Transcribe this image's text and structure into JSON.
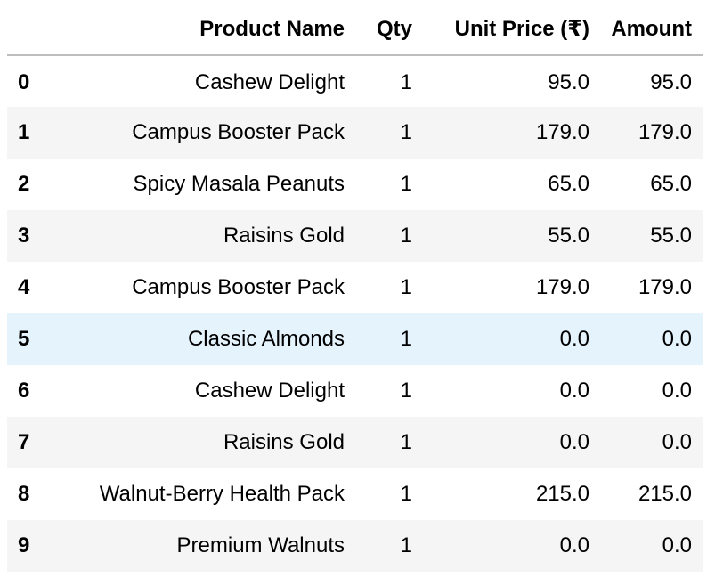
{
  "table": {
    "columns": [
      "",
      "Product Name",
      "Qty",
      "Unit Price (₹)",
      "Amount"
    ],
    "rows": [
      {
        "index": "0",
        "product": "Cashew Delight",
        "qty": "1",
        "unit_price": "95.0",
        "amount": "95.0"
      },
      {
        "index": "1",
        "product": "Campus Booster Pack",
        "qty": "1",
        "unit_price": "179.0",
        "amount": "179.0"
      },
      {
        "index": "2",
        "product": "Spicy Masala Peanuts",
        "qty": "1",
        "unit_price": "65.0",
        "amount": "65.0"
      },
      {
        "index": "3",
        "product": "Raisins Gold",
        "qty": "1",
        "unit_price": "55.0",
        "amount": "55.0"
      },
      {
        "index": "4",
        "product": "Campus Booster Pack",
        "qty": "1",
        "unit_price": "179.0",
        "amount": "179.0"
      },
      {
        "index": "5",
        "product": "Classic Almonds",
        "qty": "1",
        "unit_price": "0.0",
        "amount": "0.0"
      },
      {
        "index": "6",
        "product": "Cashew Delight",
        "qty": "1",
        "unit_price": "0.0",
        "amount": "0.0"
      },
      {
        "index": "7",
        "product": "Raisins Gold",
        "qty": "1",
        "unit_price": "0.0",
        "amount": "0.0"
      },
      {
        "index": "8",
        "product": "Walnut-Berry Health Pack",
        "qty": "1",
        "unit_price": "215.0",
        "amount": "215.0"
      },
      {
        "index": "9",
        "product": "Premium Walnuts",
        "qty": "1",
        "unit_price": "0.0",
        "amount": "0.0"
      }
    ],
    "highlighted_row": 5
  },
  "colors": {
    "header_border": "#bdbdbd",
    "stripe": "#f5f5f5",
    "highlight": "#e5f3fd"
  }
}
